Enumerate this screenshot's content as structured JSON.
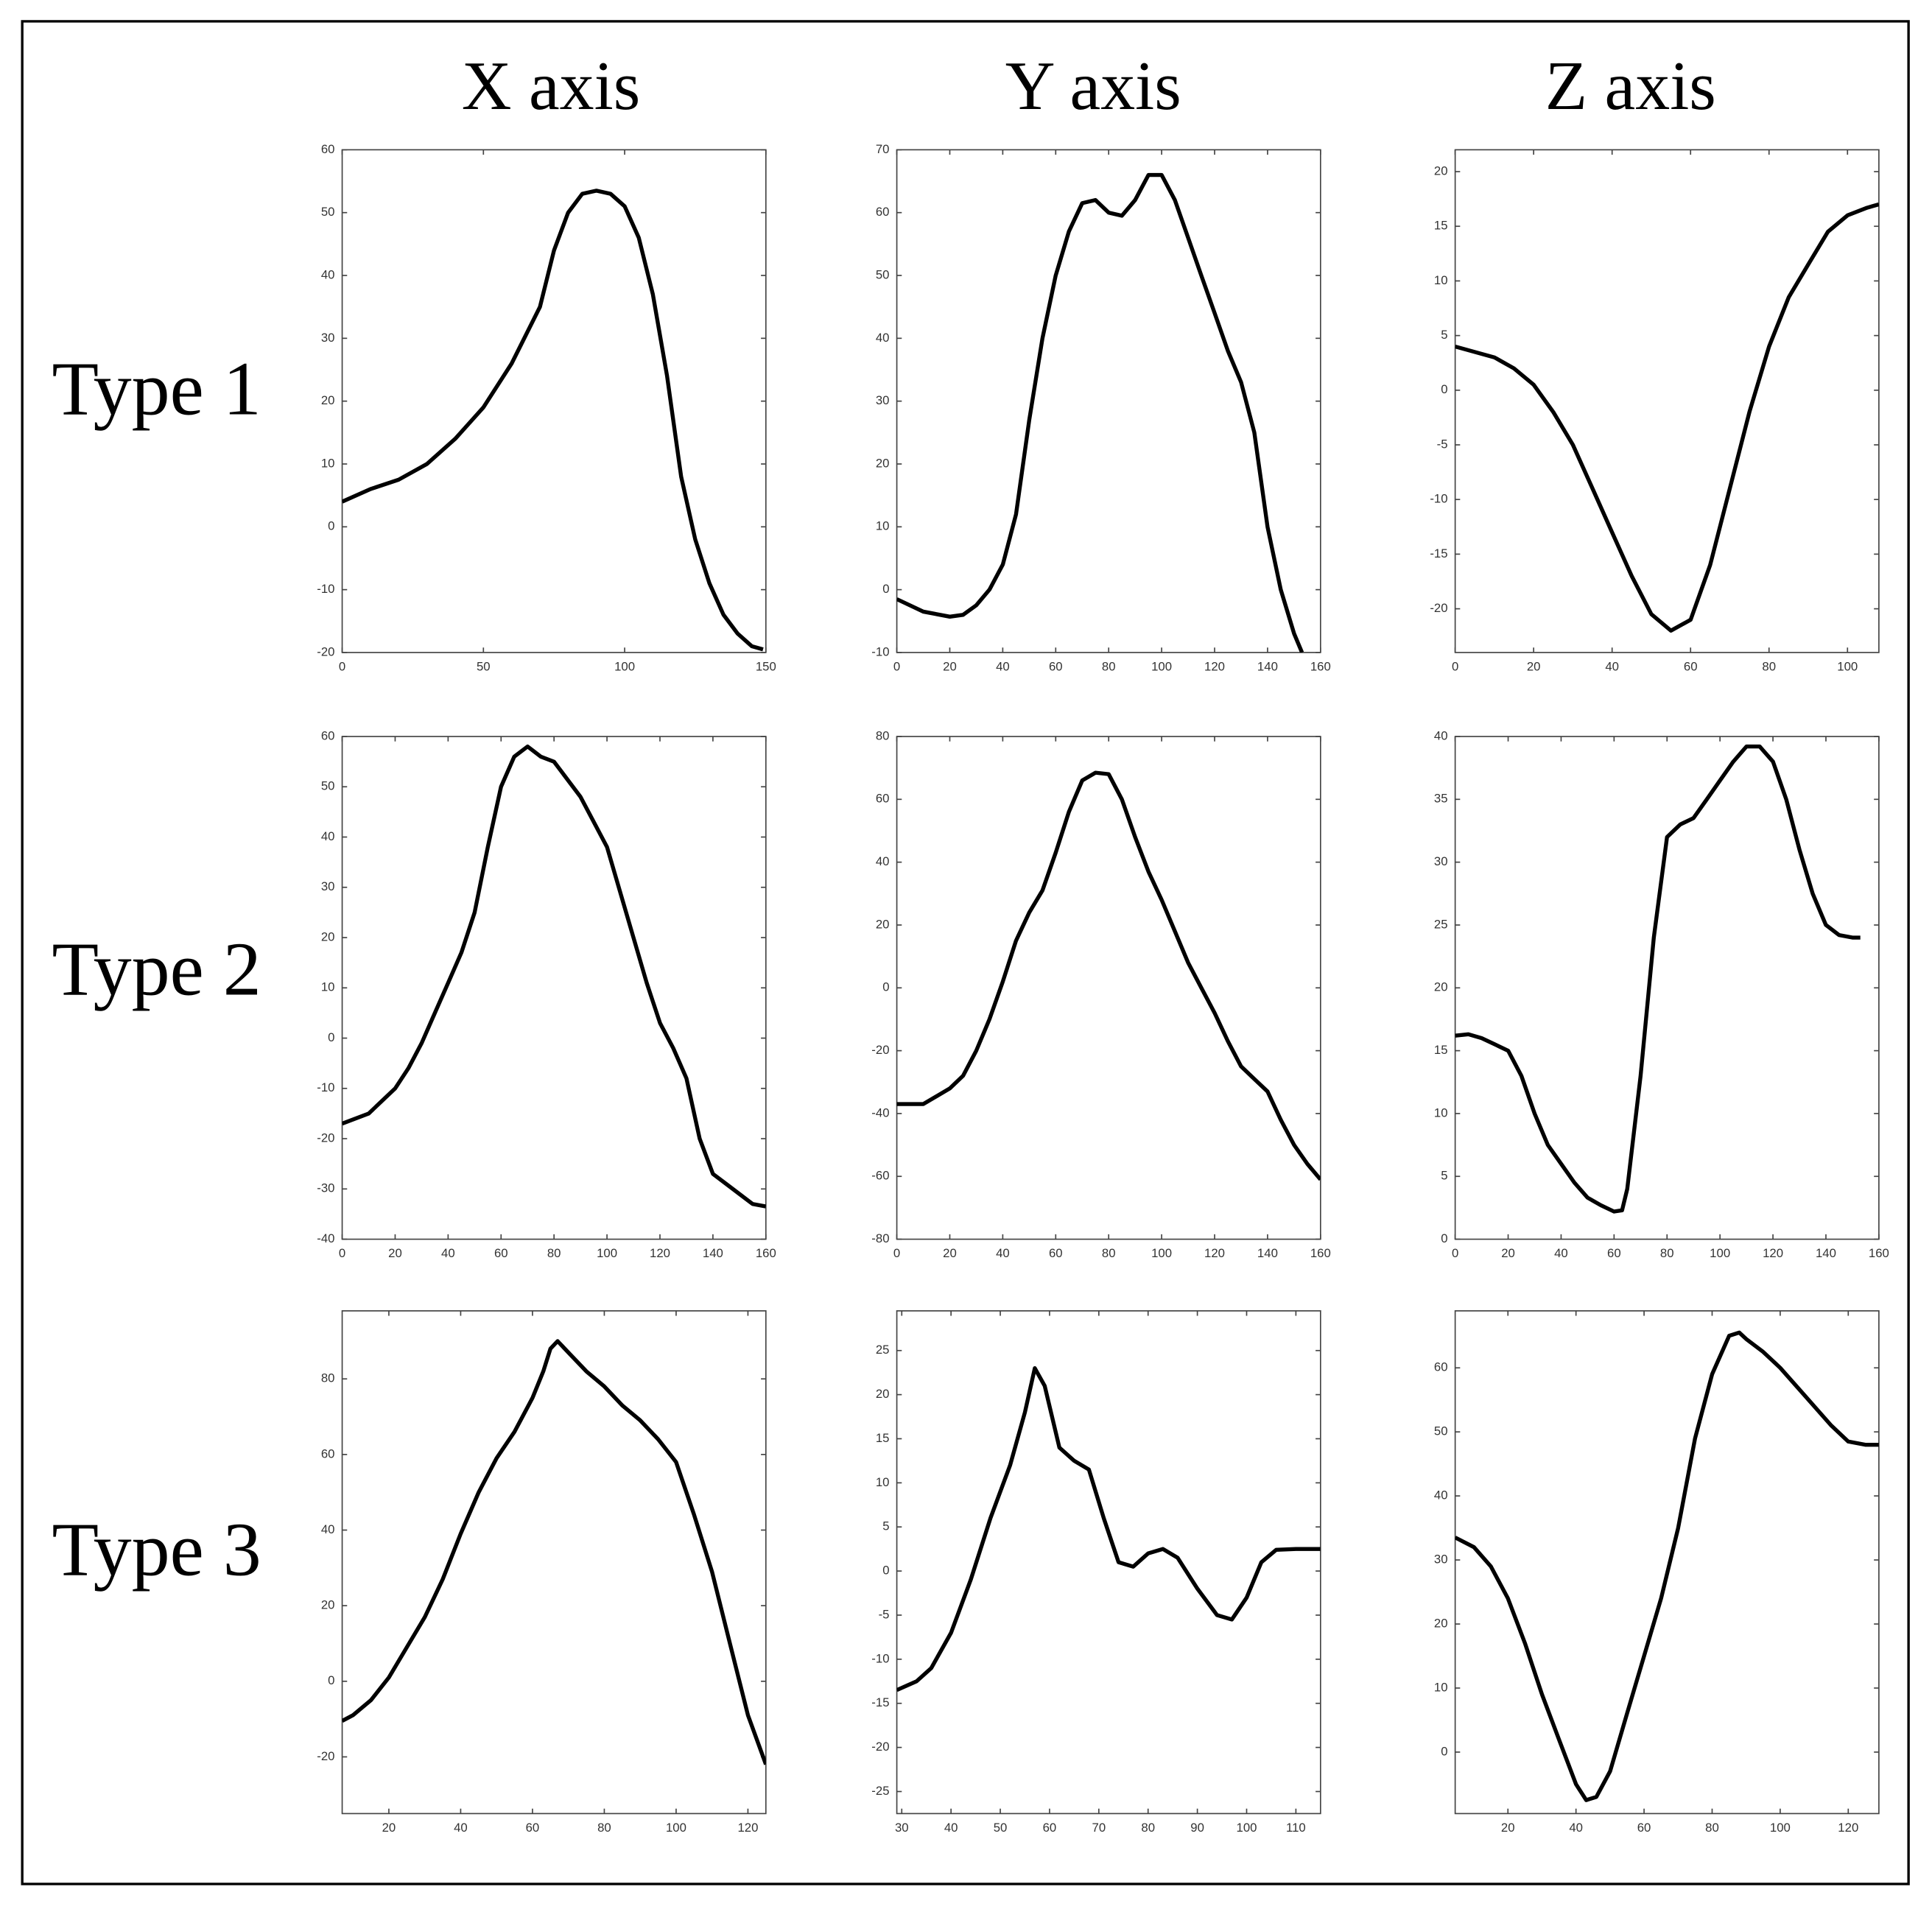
{
  "column_labels": [
    "X axis",
    "Y axis",
    "Z axis"
  ],
  "row_labels": [
    "Type 1",
    "Type 2",
    "Type 3"
  ],
  "chart_data": [
    {
      "type": "line",
      "color": "#000000",
      "x": [
        0,
        10,
        20,
        30,
        40,
        50,
        60,
        70,
        75,
        80,
        85,
        90,
        95,
        100,
        105,
        110,
        115,
        120,
        125,
        130,
        135,
        140,
        145,
        149
      ],
      "values": [
        4,
        6,
        7.5,
        10,
        14,
        19,
        26,
        35,
        44,
        50,
        53,
        53.5,
        53,
        51,
        46,
        37,
        24,
        8,
        -2,
        -9,
        -14,
        -17,
        -19,
        -19.5
      ],
      "xlim": [
        0,
        150
      ],
      "xticks": [
        0,
        50,
        100,
        150
      ],
      "ylim": [
        -20,
        60
      ],
      "yticks": [
        -20,
        -10,
        0,
        10,
        20,
        30,
        40,
        50,
        60
      ]
    },
    {
      "type": "line",
      "color": "#000000",
      "x": [
        0,
        10,
        20,
        25,
        30,
        35,
        40,
        45,
        50,
        55,
        60,
        65,
        70,
        75,
        80,
        85,
        90,
        95,
        100,
        105,
        110,
        115,
        120,
        125,
        130,
        135,
        140,
        145,
        150,
        153
      ],
      "values": [
        -1.5,
        -3.5,
        -4.3,
        -4,
        -2.5,
        0,
        4,
        12,
        27,
        40,
        50,
        57,
        61.5,
        62,
        60,
        59.5,
        62,
        66,
        66,
        62,
        56,
        50,
        44,
        38,
        33,
        25,
        10,
        0,
        -7,
        -10
      ],
      "xlim": [
        0,
        160
      ],
      "xticks": [
        0,
        20,
        40,
        60,
        80,
        100,
        120,
        140,
        160
      ],
      "ylim": [
        -10,
        70
      ],
      "yticks": [
        -10,
        0,
        10,
        20,
        30,
        40,
        50,
        60,
        70
      ]
    },
    {
      "type": "line",
      "color": "#000000",
      "x": [
        0,
        10,
        15,
        20,
        25,
        30,
        35,
        40,
        45,
        50,
        55,
        60,
        65,
        70,
        75,
        80,
        85,
        90,
        95,
        100,
        105,
        108
      ],
      "values": [
        4,
        3,
        2,
        0.5,
        -2,
        -5,
        -9,
        -13,
        -17,
        -20.5,
        -22,
        -21,
        -16,
        -9,
        -2,
        4,
        8.5,
        11.5,
        14.5,
        16,
        16.7,
        17
      ],
      "xlim": [
        0,
        108
      ],
      "xticks": [
        0,
        20,
        40,
        60,
        80,
        100
      ],
      "ylim": [
        -24,
        22
      ],
      "yticks": [
        -20,
        -15,
        -10,
        -5,
        0,
        5,
        10,
        15,
        20
      ]
    },
    {
      "type": "line",
      "color": "#000000",
      "x": [
        0,
        10,
        20,
        25,
        30,
        35,
        40,
        45,
        50,
        55,
        60,
        65,
        70,
        75,
        80,
        90,
        100,
        110,
        115,
        120,
        125,
        130,
        135,
        140,
        145,
        150,
        155,
        160
      ],
      "values": [
        -17,
        -15,
        -10,
        -6,
        -1,
        5,
        11,
        17,
        25,
        38,
        50,
        56,
        58,
        56,
        55,
        48,
        38,
        20,
        11,
        3,
        -2,
        -8,
        -20,
        -27,
        -29,
        -31,
        -33,
        -33.5
      ],
      "xlim": [
        0,
        160
      ],
      "xticks": [
        0,
        20,
        40,
        60,
        80,
        100,
        120,
        140,
        160
      ],
      "ylim": [
        -40,
        60
      ],
      "yticks": [
        -40,
        -30,
        -20,
        -10,
        0,
        10,
        20,
        30,
        40,
        50,
        60
      ]
    },
    {
      "type": "line",
      "color": "#000000",
      "x": [
        0,
        10,
        20,
        25,
        30,
        35,
        40,
        45,
        50,
        55,
        60,
        65,
        70,
        75,
        80,
        85,
        90,
        95,
        100,
        105,
        110,
        115,
        120,
        125,
        130,
        135,
        140,
        145,
        150,
        155,
        160
      ],
      "values": [
        -37,
        -37,
        -32,
        -28,
        -20,
        -10,
        2,
        15,
        24,
        31,
        43,
        56,
        66,
        68.5,
        68,
        60,
        48,
        37,
        28,
        18,
        8,
        0,
        -8,
        -17,
        -25,
        -29,
        -33,
        -42,
        -50,
        -56,
        -61
      ],
      "xlim": [
        0,
        160
      ],
      "xticks": [
        0,
        20,
        40,
        60,
        80,
        100,
        120,
        140,
        160
      ],
      "ylim": [
        -80,
        80
      ],
      "yticks": [
        -80,
        -60,
        -40,
        -20,
        0,
        20,
        40,
        60,
        80
      ]
    },
    {
      "type": "line",
      "color": "#000000",
      "x": [
        0,
        5,
        10,
        15,
        20,
        25,
        30,
        35,
        40,
        45,
        50,
        55,
        60,
        63,
        65,
        70,
        75,
        80,
        85,
        90,
        95,
        100,
        105,
        110,
        115,
        120,
        125,
        130,
        135,
        140,
        145,
        150,
        153
      ],
      "values": [
        16.2,
        16.3,
        16,
        15.5,
        15,
        13,
        10,
        7.5,
        6,
        4.5,
        3.3,
        2.7,
        2.2,
        2.3,
        4,
        13,
        24,
        32,
        33,
        33.5,
        35,
        36.5,
        38,
        39.2,
        39.2,
        38,
        35,
        31,
        27.5,
        25,
        24.2,
        24,
        24
      ],
      "xlim": [
        0,
        160
      ],
      "xticks": [
        0,
        20,
        40,
        60,
        80,
        100,
        120,
        140,
        160
      ],
      "ylim": [
        0,
        40
      ],
      "yticks": [
        0,
        5,
        10,
        15,
        20,
        25,
        30,
        35,
        40
      ]
    },
    {
      "type": "line",
      "color": "#000000",
      "x": [
        7,
        10,
        15,
        20,
        25,
        30,
        35,
        40,
        45,
        50,
        55,
        60,
        63,
        65,
        67,
        70,
        75,
        80,
        85,
        90,
        95,
        100,
        105,
        110,
        115,
        120,
        125
      ],
      "values": [
        -10.5,
        -9,
        -5,
        1,
        9,
        17,
        27,
        39,
        50,
        59,
        66,
        75,
        82,
        88,
        90,
        87,
        82,
        78,
        73,
        69,
        64,
        58,
        44,
        29,
        10,
        -9,
        -22
      ],
      "xlim": [
        7,
        125
      ],
      "xticks": [
        20,
        40,
        60,
        80,
        100,
        120
      ],
      "ylim": [
        -35,
        98
      ],
      "yticks": [
        -20,
        0,
        20,
        40,
        60,
        80
      ]
    },
    {
      "type": "line",
      "color": "#000000",
      "x": [
        29,
        33,
        36,
        40,
        44,
        48,
        52,
        55,
        57,
        59,
        62,
        65,
        68,
        71,
        74,
        77,
        80,
        83,
        86,
        90,
        94,
        97,
        100,
        103,
        106,
        110,
        115
      ],
      "values": [
        -13.5,
        -12.5,
        -11,
        -7,
        -1,
        6,
        12,
        18,
        23,
        21,
        14,
        12.5,
        11.5,
        6,
        1,
        0.5,
        2,
        2.5,
        1.5,
        -2,
        -5,
        -5.5,
        -3,
        1,
        2.4,
        2.5,
        2.5
      ],
      "xlim": [
        29,
        115
      ],
      "xticks": [
        30,
        40,
        50,
        60,
        70,
        80,
        90,
        100,
        110
      ],
      "ylim": [
        -27.5,
        29.5
      ],
      "yticks": [
        -25,
        -20,
        -15,
        -10,
        -5,
        0,
        5,
        10,
        15,
        20,
        25
      ]
    },
    {
      "type": "line",
      "color": "#000000",
      "x": [
        4.5,
        10,
        15,
        20,
        25,
        30,
        35,
        40,
        43,
        46,
        50,
        55,
        60,
        65,
        70,
        75,
        80,
        85,
        88,
        90,
        95,
        100,
        105,
        110,
        115,
        120,
        125,
        129
      ],
      "values": [
        33.5,
        32,
        29,
        24,
        17,
        9,
        2,
        -5,
        -7.5,
        -7,
        -3,
        6,
        15,
        24,
        35,
        49,
        59,
        65,
        65.5,
        64.5,
        62.5,
        60,
        57,
        54,
        51,
        48.5,
        48,
        48
      ],
      "xlim": [
        4.5,
        129
      ],
      "xticks": [
        20,
        40,
        60,
        80,
        100,
        120
      ],
      "ylim": [
        -9.6,
        68.9
      ],
      "yticks": [
        0,
        10,
        20,
        30,
        40,
        50,
        60
      ]
    }
  ]
}
